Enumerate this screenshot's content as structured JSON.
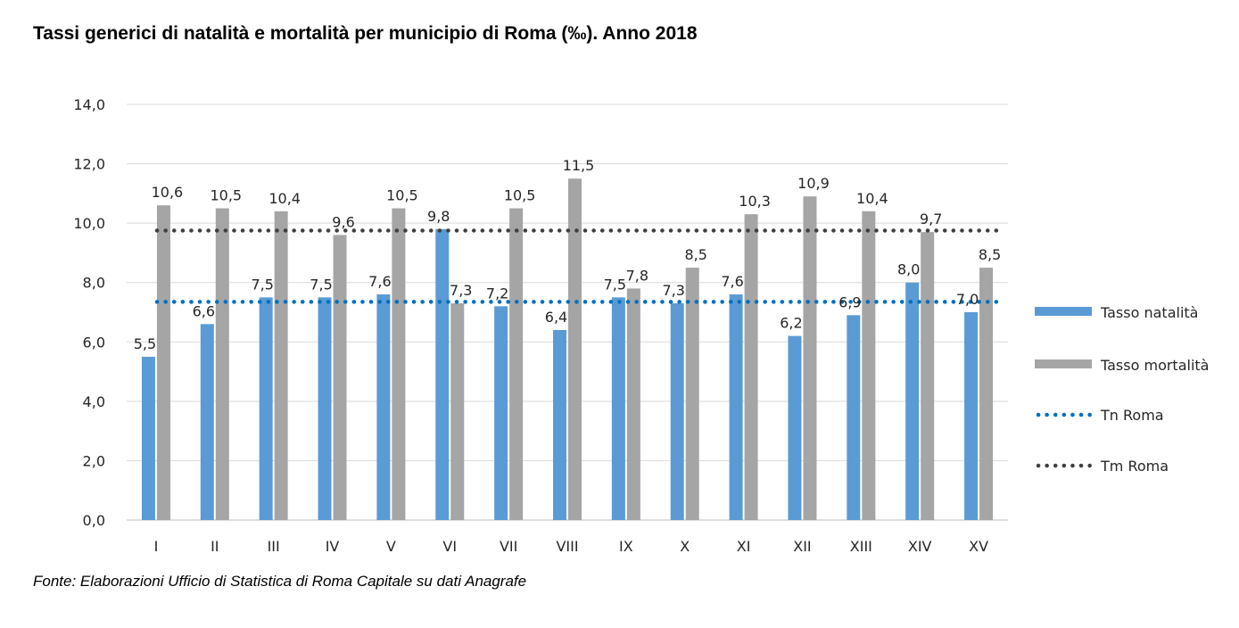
{
  "title": "Tassi generici di natalità e mortalità per municipio di Roma (‰). Anno 2018",
  "source": "Fonte: Elaborazioni Ufficio di Statistica di Roma Capitale su dati Anagrafe",
  "colors": {
    "natalita": "#5b9bd5",
    "mortalita": "#a5a5a5",
    "tn_line": "#0070c0",
    "tm_line": "#404040",
    "grid": "#d9d9d9"
  },
  "chart_data": {
    "type": "bar",
    "categories": [
      "I",
      "II",
      "III",
      "IV",
      "V",
      "VI",
      "VII",
      "VIII",
      "IX",
      "X",
      "XI",
      "XII",
      "XIII",
      "XIV",
      "XV"
    ],
    "series": [
      {
        "name": "Tasso natalità",
        "values": [
          5.5,
          6.6,
          7.5,
          7.5,
          7.6,
          9.8,
          7.2,
          6.4,
          7.5,
          7.3,
          7.6,
          6.2,
          6.9,
          8.0,
          7.0
        ],
        "labels": [
          "5,5",
          "6,6",
          "7,5",
          "7,5",
          "7,6",
          "9,8",
          "7,2",
          "6,4",
          "7,5",
          "7,3",
          "7,6",
          "6,2",
          "6,9",
          "8,0",
          "7,0"
        ]
      },
      {
        "name": "Tasso mortalità",
        "values": [
          10.6,
          10.5,
          10.4,
          9.6,
          10.5,
          7.3,
          10.5,
          11.5,
          7.8,
          8.5,
          10.3,
          10.9,
          10.4,
          9.7,
          8.5
        ],
        "labels": [
          "10,6",
          "10,5",
          "10,4",
          "9,6",
          "10,5",
          "7,3",
          "10,5",
          "11,5",
          "7,8",
          "8,5",
          "10,3",
          "10,9",
          "10,4",
          "9,7",
          "8,5"
        ]
      }
    ],
    "reference_lines": [
      {
        "name": "Tn Roma",
        "value": 7.35,
        "style": "dotted"
      },
      {
        "name": "Tm Roma",
        "value": 9.75,
        "style": "dotted"
      }
    ],
    "ylim": [
      0,
      14
    ],
    "yticks": [
      0,
      2,
      4,
      6,
      8,
      10,
      12,
      14
    ],
    "ytick_labels": [
      "0,0",
      "2,0",
      "4,0",
      "6,0",
      "8,0",
      "10,0",
      "12,0",
      "14,0"
    ],
    "grid": true,
    "legend": "right"
  }
}
